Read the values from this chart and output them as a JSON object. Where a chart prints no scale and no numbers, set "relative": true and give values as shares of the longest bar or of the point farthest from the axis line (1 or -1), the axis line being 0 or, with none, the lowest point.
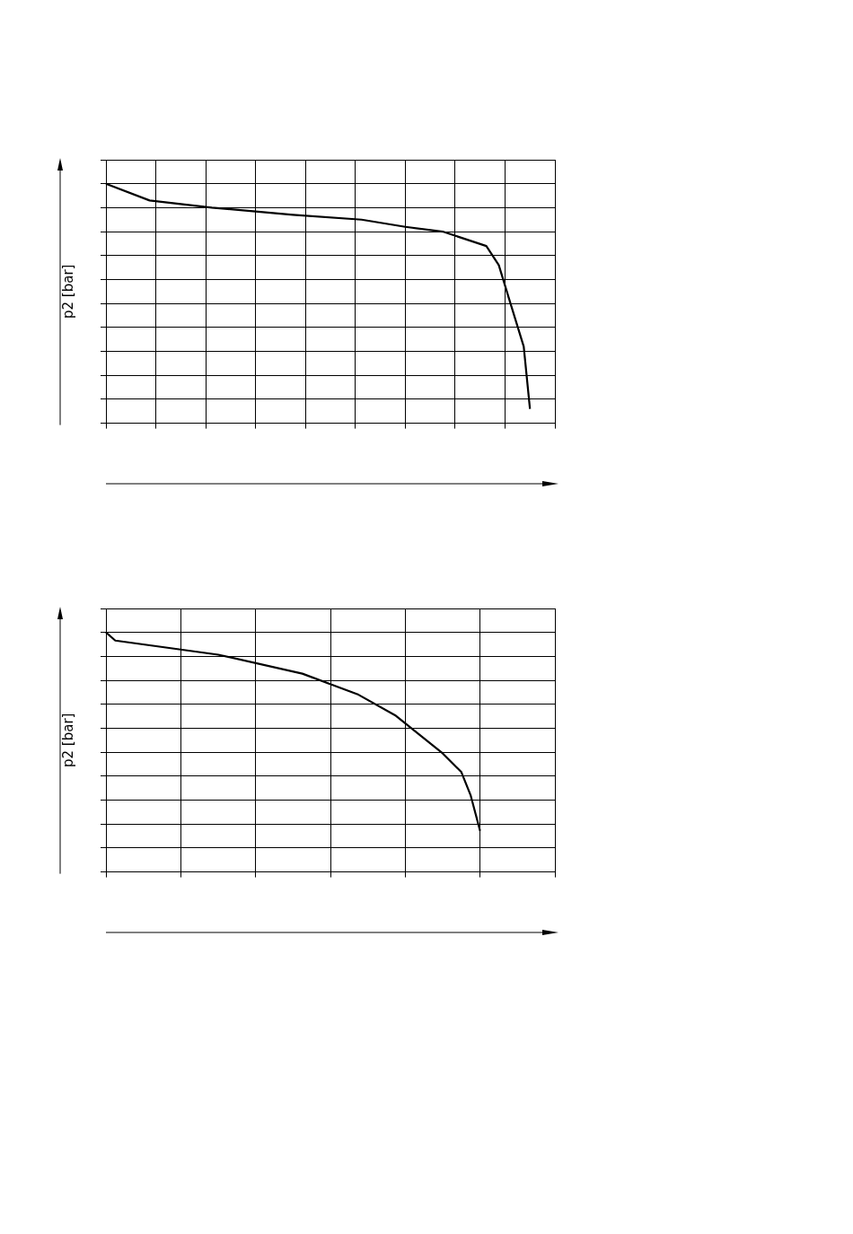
{
  "chart_data": [
    {
      "type": "line",
      "ylabel": "p2 [bar]",
      "relative": true,
      "grid": true,
      "marker": "none",
      "line_style": "solid",
      "legend": false,
      "categories": [
        null,
        null,
        null,
        null,
        null,
        null,
        null,
        null,
        null,
        null,
        null,
        null,
        null,
        null,
        null,
        null,
        null,
        null,
        null,
        null,
        null,
        null,
        null,
        null,
        null,
        null,
        null,
        null,
        null,
        null,
        null,
        null,
        null,
        null,
        null,
        null,
        null,
        null,
        null,
        null,
        null,
        null,
        null,
        null,
        null,
        null,
        null,
        null,
        null,
        null,
        null,
        null,
        null,
        null,
        null,
        null,
        null,
        null,
        null,
        null,
        null,
        null,
        null,
        null,
        null,
        null,
        null,
        null,
        null,
        null,
        null,
        null,
        null
      ],
      "series": [
        {
          "color": "#000000",
          "values": [
            1,
            null,
            null,
            null,
            null,
            null,
            null,
            0.93,
            null,
            null,
            null,
            null,
            null,
            null,
            null,
            null,
            null,
            0.9,
            null,
            null,
            null,
            null,
            null,
            null,
            null,
            null,
            null,
            null,
            null,
            null,
            0.87,
            null,
            null,
            null,
            null,
            null,
            null,
            null,
            null,
            null,
            null,
            0.85,
            null,
            null,
            null,
            null,
            null,
            null,
            0.82,
            null,
            null,
            null,
            null,
            null,
            0.8,
            null,
            null,
            null,
            null,
            null,
            null,
            0.74,
            null,
            0.66,
            null,
            0.49,
            null,
            0.32,
            0.06,
            null,
            null,
            null,
            null
          ]
        }
      ]
    },
    {
      "type": "line",
      "ylabel": "p2 [bar]",
      "relative": true,
      "grid": true,
      "marker": "none",
      "line_style": "solid",
      "legend": false,
      "categories": [
        null,
        null,
        null,
        null,
        null,
        null,
        null,
        null,
        null,
        null,
        null,
        null,
        null,
        null,
        null,
        null,
        null,
        null,
        null,
        null,
        null,
        null,
        null,
        null,
        null,
        null,
        null,
        null,
        null,
        null,
        null,
        null,
        null,
        null,
        null,
        null,
        null,
        null,
        null,
        null,
        null,
        null,
        null,
        null,
        null,
        null,
        null,
        null,
        null
      ],
      "series": [
        {
          "color": "#000000",
          "values": [
            1,
            0.966,
            null,
            null,
            null,
            null,
            null,
            null,
            null,
            null,
            null,
            null,
            0.907,
            null,
            null,
            null,
            null,
            null,
            null,
            null,
            null,
            0.828,
            null,
            null,
            null,
            null,
            null,
            0.74,
            null,
            null,
            null,
            0.652,
            null,
            null,
            null,
            null,
            0.495,
            null,
            0.417,
            0.319,
            0.172,
            null,
            null,
            null,
            null,
            null,
            null,
            null,
            null
          ]
        }
      ]
    }
  ]
}
